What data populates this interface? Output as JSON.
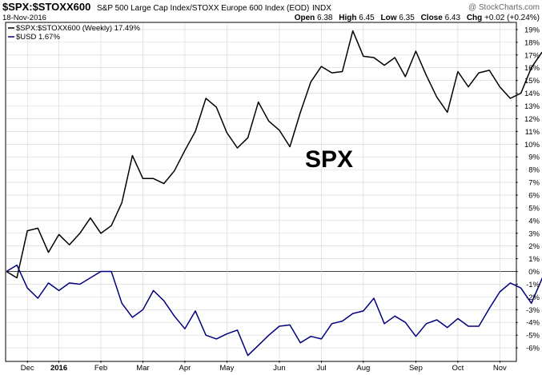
{
  "header": {
    "symbol": "$SPX:$STOXX600",
    "description": "S&P 500 Large Cap Index/STOXX Europe 600 Index (EOD)",
    "exchange": "INDX",
    "date": "18-Nov-2016",
    "open_label": "Open",
    "open_value": "6.38",
    "high_label": "High",
    "high_value": "6.45",
    "low_label": "Low",
    "low_value": "6.35",
    "close_label": "Close",
    "close_value": "6.43",
    "chg_label": "Chg",
    "chg_value": "+0.02 (+0.24%)"
  },
  "watermark": "@ StockCharts.com",
  "colors": {
    "series_primary": "#000000",
    "series_secondary": "#000080",
    "grid": "#d4d4d4"
  },
  "chart_data": {
    "type": "line",
    "annotation": "SPX",
    "legend": [
      {
        "label": "$SPX:$STOXX600 (Weekly) 17.49%",
        "color": "#000000"
      },
      {
        "label": "$USD 1.67%",
        "color": "#000080"
      }
    ],
    "legend_position": "top-left",
    "grid": true,
    "y_axis": {
      "position": "right",
      "range": [
        -7,
        19.5
      ],
      "ticks": [
        -6,
        -5,
        -4,
        -3,
        -2,
        -1,
        0,
        1,
        2,
        3,
        4,
        5,
        6,
        7,
        8,
        9,
        10,
        11,
        12,
        13,
        14,
        15,
        16,
        17,
        18,
        19
      ],
      "tick_suffix": "%"
    },
    "x_axis": {
      "ticks": [
        {
          "label": "Dec",
          "week": 2,
          "bold": false
        },
        {
          "label": "2016",
          "week": 5,
          "bold": true
        },
        {
          "label": "Feb",
          "week": 9,
          "bold": false
        },
        {
          "label": "Mar",
          "week": 13,
          "bold": false
        },
        {
          "label": "Apr",
          "week": 17,
          "bold": false
        },
        {
          "label": "May",
          "week": 21,
          "bold": false
        },
        {
          "label": "Jun",
          "week": 26,
          "bold": false
        },
        {
          "label": "Jul",
          "week": 30,
          "bold": false
        },
        {
          "label": "Aug",
          "week": 34,
          "bold": false
        },
        {
          "label": "Sep",
          "week": 39,
          "bold": false
        },
        {
          "label": "Oct",
          "week": 43,
          "bold": false
        },
        {
          "label": "Nov",
          "week": 47,
          "bold": false
        }
      ],
      "range": [
        0,
        48.5
      ]
    },
    "series": [
      {
        "name": "$SPX:$STOXX600 (Weekly)",
        "color": "#000000",
        "values": [
          0,
          -0.5,
          3.2,
          3.4,
          1.5,
          2.9,
          2.1,
          3.0,
          4.2,
          3.0,
          3.6,
          5.4,
          9.1,
          7.3,
          7.3,
          6.9,
          7.9,
          9.5,
          11.0,
          13.6,
          12.9,
          10.9,
          9.7,
          10.5,
          13.3,
          11.8,
          11.1,
          9.8,
          12.5,
          14.9,
          16.1,
          15.6,
          15.7,
          18.9,
          16.9,
          16.8,
          16.2,
          16.8,
          15.3,
          17.3,
          15.4,
          13.7,
          12.5,
          15.7,
          14.5,
          15.6,
          15.8,
          14.5,
          13.6,
          14.0,
          16.0,
          17.2,
          17.49
        ]
      },
      {
        "name": "$USD",
        "color": "#000080",
        "values": [
          0,
          0.5,
          -1.3,
          -2.1,
          -0.9,
          -1.5,
          -0.9,
          -1.0,
          -0.5,
          0,
          0,
          -2.5,
          -3.6,
          -3.0,
          -1.5,
          -2.3,
          -3.5,
          -4.5,
          -3.1,
          -5.0,
          -5.3,
          -4.9,
          -4.6,
          -6.6,
          -5.8,
          -5.0,
          -4.3,
          -4.2,
          -5.6,
          -5.1,
          -5.3,
          -4.1,
          -3.9,
          -3.3,
          -3.1,
          -2.1,
          -4.1,
          -3.5,
          -4.0,
          -5.1,
          -4.1,
          -3.8,
          -4.4,
          -3.7,
          -4.3,
          -4.3,
          -2.9,
          -1.6,
          -0.9,
          -1.3,
          -2.5,
          -0.6,
          1.67
        ]
      }
    ]
  }
}
